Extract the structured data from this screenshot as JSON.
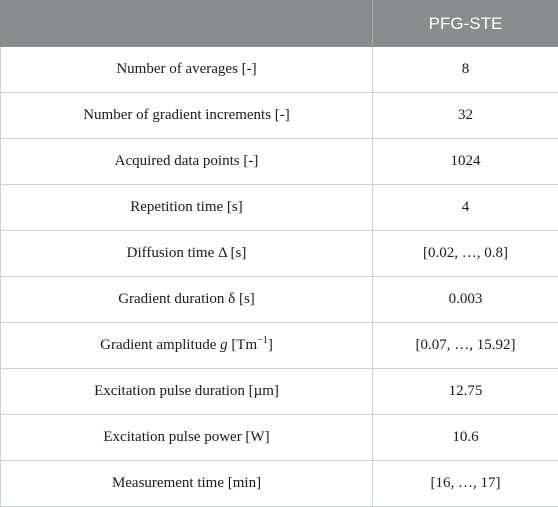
{
  "table": {
    "header": [
      "",
      "PFG-STE"
    ],
    "rows": [
      {
        "param": "Number of averages [-]",
        "value": "8"
      },
      {
        "param": "Number of gradient increments [-]",
        "value": "32"
      },
      {
        "param": "Acquired data points [-]",
        "value": "1024"
      },
      {
        "param": "Repetition time [s]",
        "value": "4"
      },
      {
        "param": "Diffusion time Δ [s]",
        "value": "[0.02, …, 0.8]"
      },
      {
        "param": "Gradient duration δ [s]",
        "value": "0.003"
      },
      {
        "param_prefix": "Gradient amplitude ",
        "param_italic": "g",
        "param_unit": " [Tm",
        "param_sup": "−1",
        "param_suffix": "]",
        "value": "[0.07, …, 15.92]"
      },
      {
        "param": "Excitation pulse duration [µm]",
        "value": "12.75"
      },
      {
        "param": "Excitation pulse power [W]",
        "value": "10.6"
      },
      {
        "param": "Measurement time [min]",
        "value": "[16, …, 17]"
      }
    ]
  }
}
